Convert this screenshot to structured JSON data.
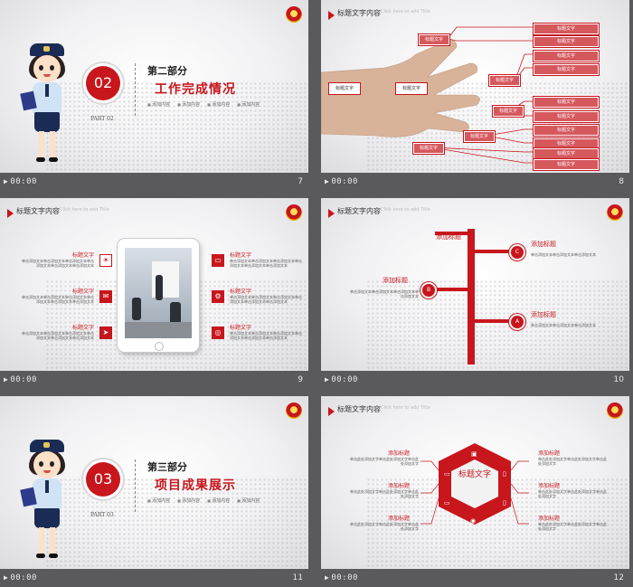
{
  "accent_color": "#c8161d",
  "slides": [
    {
      "id": 7,
      "number": "7",
      "bottom_label": "00:00",
      "section_number": "02",
      "part_label": "PART 02",
      "section_title": "第二部分",
      "section_subtitle": "工作完成情况",
      "items": [
        "添加内容",
        "添加内容",
        "添加内容",
        "添加内容"
      ]
    },
    {
      "id": 8,
      "number": "8",
      "bottom_label": "00:00",
      "header_title": "标题文字内容",
      "header_sub": "Click here to add Title",
      "boxes": [
        "标题文字",
        "标题文字",
        "标题文字",
        "标题文字",
        "标题文字",
        "标题文字",
        "标题文字",
        "标题文字",
        "标题文字",
        "标题文字",
        "标题文字",
        "标题文字",
        "标题文字",
        "标题文字",
        "标题文字",
        "标题文字"
      ]
    },
    {
      "id": 9,
      "number": "9",
      "bottom_label": "00:00",
      "header_title": "标题文字内容",
      "header_sub": "Click here to add Title",
      "left_items": [
        {
          "title": "标题文字",
          "body": "单击添加文本单击添加文本单击添加文本单击添加文本单击添加文本单击添加文本"
        },
        {
          "title": "标题文字",
          "body": "单击添加文本单击添加文本单击添加文本单击添加文本单击添加文本单击添加文本"
        },
        {
          "title": "标题文字",
          "body": "单击添加文本单击添加文本单击添加文本单击添加文本单击添加文本单击添加文本"
        }
      ],
      "right_items": [
        {
          "title": "标题文字",
          "body": "单击添加文本单击添加文本单击添加文本单击添加文本单击添加文本单击添加文本"
        },
        {
          "title": "标题文字",
          "body": "单击添加文本单击添加文本单击添加文本单击添加文本单击添加文本单击添加文本"
        },
        {
          "title": "标题文字",
          "body": "单击添加文本单击添加文本单击添加文本单击添加文本单击添加文本单击添加文本"
        }
      ]
    },
    {
      "id": 10,
      "number": "10",
      "bottom_label": "00:00",
      "header_title": "标题文字内容",
      "header_sub": "Click here to add Title",
      "top_label": "添加标题",
      "nodes": [
        {
          "letter": "C",
          "title": "添加标题",
          "body": "单击添加文本单击添加文本单击添加文本"
        },
        {
          "letter": "B",
          "title": "添加标题",
          "body": "单击添加文本单击添加文本单击添加文本单击添加文本"
        },
        {
          "letter": "A",
          "title": "添加标题",
          "body": "单击添加文本单击添加文本单击添加文本"
        }
      ]
    },
    {
      "id": 11,
      "number": "11",
      "bottom_label": "00:00",
      "section_number": "03",
      "part_label": "PART 03",
      "section_title": "第三部分",
      "section_subtitle": "项目成果展示",
      "items": [
        "添加内容",
        "添加内容",
        "添加内容",
        "添加内容"
      ]
    },
    {
      "id": 12,
      "number": "12",
      "bottom_label": "00:00",
      "header_title": "标题文字内容",
      "header_sub": "Click here to add Title",
      "center_title": "标题文字",
      "items": [
        {
          "title": "添加标题",
          "body": "单击此处添加文字单击此处添加文字单击此处添加文字"
        },
        {
          "title": "添加标题",
          "body": "单击此处添加文字单击此处添加文字单击此处添加文字"
        },
        {
          "title": "添加标题",
          "body": "单击此处添加文字单击此处添加文字单击此处添加文字"
        },
        {
          "title": "添加标题",
          "body": "单击此处添加文字单击此处添加文字单击此处添加文字"
        },
        {
          "title": "添加标题",
          "body": "单击此处添加文字单击此处添加文字单击此处添加文字"
        },
        {
          "title": "添加标题",
          "body": "单击此处添加文字单击此处添加文字单击此处添加文字"
        }
      ]
    }
  ]
}
